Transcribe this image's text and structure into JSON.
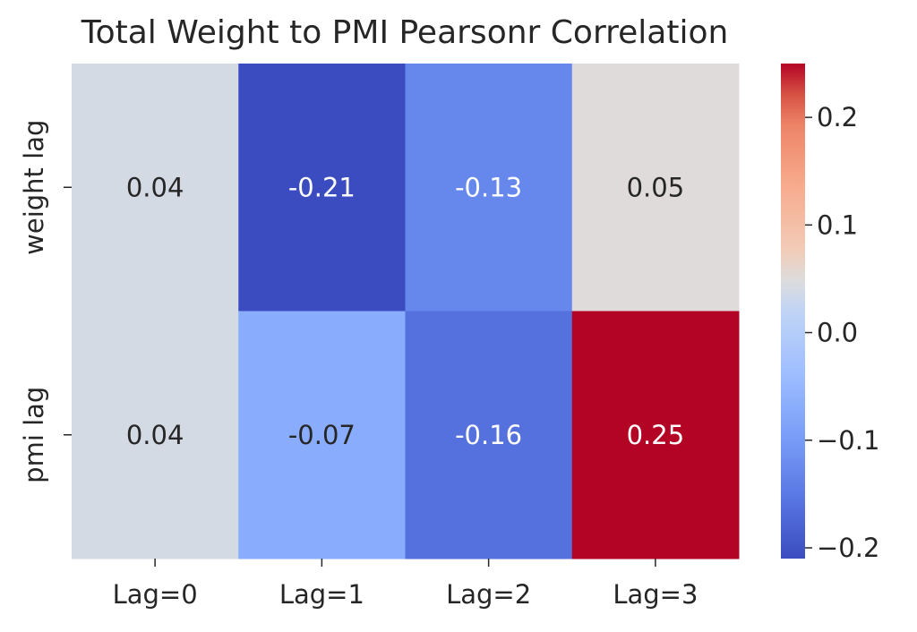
{
  "chart_data": {
    "type": "heatmap",
    "title": "Total Weight to PMI Pearsonr Correlation",
    "xlabel": "",
    "ylabel": "",
    "x_categories": [
      "Lag=0",
      "Lag=1",
      "Lag=2",
      "Lag=3"
    ],
    "y_categories": [
      "weight lag",
      "pmi lag"
    ],
    "values": [
      [
        0.04,
        -0.21,
        -0.13,
        0.05
      ],
      [
        0.04,
        -0.07,
        -0.16,
        0.25
      ]
    ],
    "cell_labels": [
      [
        "0.04",
        "-0.21",
        "-0.13",
        "0.05"
      ],
      [
        "0.04",
        "-0.07",
        "-0.16",
        "0.25"
      ]
    ],
    "colormap": "coolwarm",
    "vmin": -0.21,
    "vmax": 0.25,
    "colorbar": {
      "ticks": [
        0.2,
        0.1,
        0.0,
        -0.1,
        -0.2
      ],
      "tick_labels": [
        "0.2",
        "0.1",
        "0.0",
        "−0.1",
        "−0.2"
      ]
    },
    "colors": {
      "cold": "#3b4cc0",
      "mid": "#dddddd",
      "hot": "#b40426",
      "text_dark": "#262626",
      "text_light": "#ffffff"
    }
  }
}
